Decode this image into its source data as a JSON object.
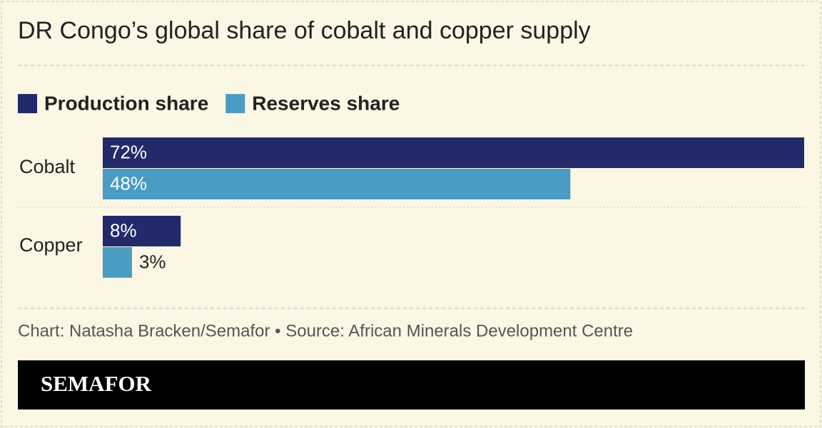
{
  "chart_data": {
    "type": "bar",
    "orientation": "horizontal",
    "title": "DR Congo’s global share of cobalt and copper supply",
    "categories": [
      "Cobalt",
      "Copper"
    ],
    "series": [
      {
        "name": "Production share",
        "color": "#232a6b",
        "values": [
          72,
          8
        ],
        "value_labels": [
          "72%",
          "8%"
        ]
      },
      {
        "name": "Reserves share",
        "color": "#4a9cc4",
        "values": [
          48,
          3
        ],
        "value_labels": [
          "48%",
          "3%"
        ]
      }
    ],
    "note": "Chart: Natasha Bracken/Semafor • Source: African Minerals Development Centre",
    "brand": "SEMAFOR"
  }
}
